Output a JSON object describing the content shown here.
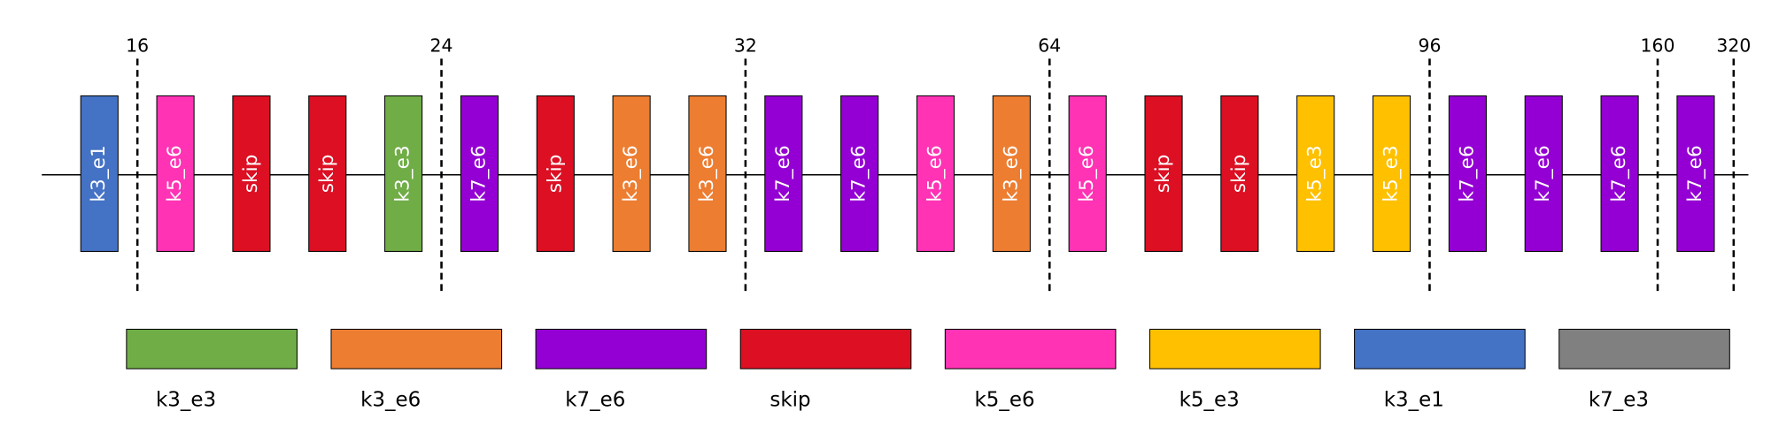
{
  "stages": [
    {
      "label": "16",
      "blocks": [
        "k3_e1"
      ]
    },
    {
      "label": "24",
      "blocks": [
        "k5_e6",
        "skip",
        "skip",
        "k3_e3"
      ]
    },
    {
      "label": "32",
      "blocks": [
        "k7_e6",
        "skip",
        "k3_e6",
        "k3_e6"
      ]
    },
    {
      "label": "64",
      "blocks": [
        "k7_e6",
        "k7_e6",
        "k5_e6",
        "k3_e6"
      ]
    },
    {
      "label": "96",
      "blocks": [
        "k5_e6",
        "skip",
        "skip",
        "k5_e3",
        "k5_e3"
      ]
    },
    {
      "label": "160",
      "blocks": [
        "k7_e6",
        "k7_e6",
        "k7_e6"
      ]
    },
    {
      "label": "320",
      "blocks": [
        "k7_e6"
      ]
    }
  ],
  "legend": [
    {
      "label": "k3_e3",
      "color": "#70ad47"
    },
    {
      "label": "k3_e6",
      "color": "#ed7d31"
    },
    {
      "label": "k7_e6",
      "color": "#9400d3"
    },
    {
      "label": "skip",
      "color": "#dc0f23"
    },
    {
      "label": "k5_e6",
      "color": "#ff33b4"
    },
    {
      "label": "k5_e3",
      "color": "#ffc000"
    },
    {
      "label": "k3_e1",
      "color": "#4472c4"
    },
    {
      "label": "k7_e3",
      "color": "#808080"
    }
  ]
}
